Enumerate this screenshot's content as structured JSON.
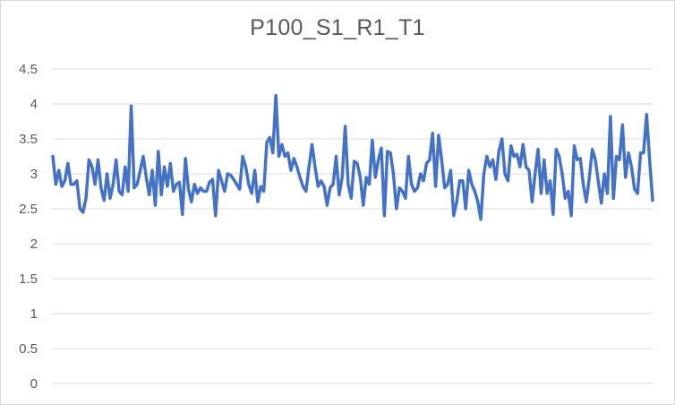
{
  "chart_data": {
    "type": "line",
    "title": "P100_S1_R1_T1",
    "xlabel": "",
    "ylabel": "",
    "ylim": [
      0,
      4.5
    ],
    "yticks": [
      "0",
      "0.5",
      "1",
      "1.5",
      "2",
      "2.5",
      "3",
      "3.5",
      "4",
      "4.5"
    ],
    "grid": true,
    "legend": "none",
    "line_color": "#4472c4",
    "series": [
      {
        "values": [
          3.25,
          2.85,
          3.05,
          2.82,
          2.9,
          3.15,
          2.85,
          2.85,
          2.9,
          2.5,
          2.45,
          2.65,
          3.2,
          3.1,
          2.85,
          3.2,
          2.8,
          2.62,
          3.0,
          2.65,
          2.85,
          3.2,
          2.75,
          2.7,
          3.1,
          2.75,
          3.97,
          2.8,
          2.85,
          3.05,
          3.25,
          2.95,
          2.7,
          3.05,
          2.55,
          3.32,
          2.7,
          3.1,
          2.82,
          3.15,
          2.75,
          2.85,
          2.88,
          2.42,
          3.22,
          2.78,
          2.6,
          2.85,
          2.72,
          2.8,
          2.75,
          2.75,
          2.88,
          2.92,
          2.4,
          3.05,
          2.9,
          2.75,
          3.0,
          2.98,
          2.92,
          2.85,
          2.78,
          3.25,
          3.1,
          2.85,
          2.72,
          3.05,
          2.6,
          2.82,
          2.75,
          3.45,
          3.52,
          3.3,
          4.12,
          3.25,
          3.42,
          3.25,
          3.3,
          3.05,
          3.22,
          3.1,
          2.95,
          2.82,
          2.75,
          3.1,
          3.42,
          3.1,
          2.82,
          2.9,
          2.82,
          2.55,
          2.8,
          2.85,
          3.25,
          2.7,
          2.95,
          3.68,
          2.85,
          2.65,
          3.18,
          3.15,
          2.95,
          2.55,
          2.95,
          2.85,
          3.48,
          2.95,
          3.2,
          3.37,
          2.4,
          3.32,
          3.3,
          3.0,
          2.5,
          2.8,
          2.75,
          2.65,
          3.25,
          2.85,
          2.75,
          2.8,
          3.0,
          2.9,
          3.15,
          3.2,
          3.58,
          2.82,
          3.55,
          3.2,
          2.8,
          2.85,
          3.05,
          2.4,
          2.6,
          2.9,
          2.9,
          2.5,
          3.05,
          2.85,
          2.75,
          2.6,
          2.35,
          3.0,
          3.25,
          3.1,
          3.2,
          2.92,
          3.32,
          3.5,
          3.0,
          2.9,
          3.4,
          3.25,
          3.28,
          3.1,
          3.42,
          3.1,
          3.05,
          2.6,
          3.0,
          3.35,
          2.72,
          3.2,
          2.72,
          2.9,
          2.42,
          3.35,
          3.25,
          3.0,
          2.65,
          2.75,
          2.4,
          3.4,
          3.2,
          3.22,
          2.85,
          2.6,
          2.95,
          3.35,
          3.2,
          2.88,
          2.58,
          3.0,
          2.72,
          3.82,
          2.65,
          3.25,
          3.2,
          3.7,
          2.95,
          3.3,
          3.1,
          2.78,
          2.72,
          3.3,
          3.3,
          3.85,
          3.2,
          2.62
        ]
      }
    ]
  }
}
